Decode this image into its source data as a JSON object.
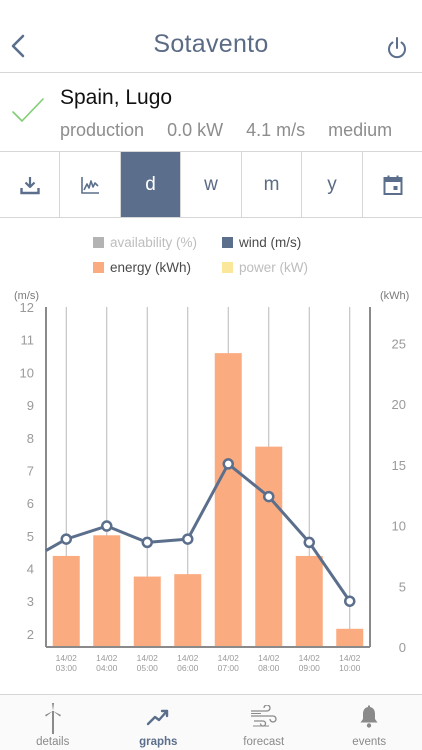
{
  "header": {
    "title": "Sotavento"
  },
  "site": {
    "name": "Spain, Lugo",
    "status_label": "production",
    "power": "0.0 kW",
    "wind": "4.1 m/s",
    "level": "medium"
  },
  "toolbar": {
    "day": "d",
    "week": "w",
    "month": "m",
    "year": "y",
    "active": "d"
  },
  "legend": {
    "availability": "availability (%)",
    "wind": "wind (m/s)",
    "energy": "energy (kWh)",
    "power": "power (kW)"
  },
  "colors": {
    "accent": "#5b6f8c",
    "availability": "#b3b3b3",
    "wind": "#5b6f8c",
    "energy": "#fbab80",
    "power": "#fbe79a"
  },
  "chart_data": {
    "type": "bar",
    "categories": [
      "14/02 03:00",
      "14/02 04:00",
      "14/02 05:00",
      "14/02 06:00",
      "14/02 07:00",
      "14/02 08:00",
      "14/02 09:00",
      "14/02 10:00"
    ],
    "series": [
      {
        "name": "energy (kWh)",
        "axis": "right",
        "type": "bar",
        "values": [
          7.5,
          9.2,
          5.8,
          6.0,
          24.2,
          16.5,
          7.5,
          1.5
        ]
      },
      {
        "name": "wind (m/s)",
        "axis": "left",
        "type": "line",
        "values": [
          4.9,
          5.3,
          4.8,
          4.9,
          7.2,
          6.2,
          4.8,
          3.0
        ]
      }
    ],
    "left_unit": "(m/s)",
    "right_unit": "(kWh)",
    "left_ticks": [
      "2",
      "3",
      "4",
      "5",
      "6",
      "7",
      "8",
      "9",
      "10",
      "11",
      "12"
    ],
    "right_ticks": [
      "0",
      "5",
      "10",
      "15",
      "20",
      "25"
    ],
    "ylim_left": [
      1.6,
      12
    ],
    "ylim_right": [
      0,
      28
    ],
    "grid": "vertical"
  },
  "tabs": {
    "details": "details",
    "graphs": "graphs",
    "forecast": "forecast",
    "events": "events"
  }
}
